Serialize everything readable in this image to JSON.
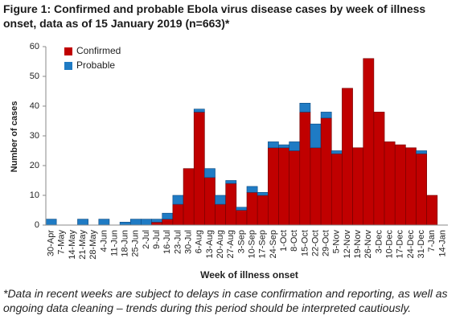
{
  "chart_data": {
    "type": "stacked_bar",
    "title": "Figure 1: Confirmed and probable Ebola virus disease cases by week of illness onset, data as of 15 January 2019 (n=663)*",
    "x_label": "Week of illness onset",
    "y_label": "Number of cases",
    "footnote": "*Data in recent weeks are subject to delays in case confirmation and reporting, as well as ongoing data cleaning – trends during this period should be interpreted cautiously.",
    "categories": [
      "30-Apr",
      "7-May",
      "14-May",
      "21-May",
      "28-May",
      "4-Jun",
      "11-Jun",
      "18-Jun",
      "25-Jun",
      "2-Jul",
      "9-Jul",
      "16-Jul",
      "23-Jul",
      "30-Jul",
      "6-Aug",
      "13-Aug",
      "20-Aug",
      "27-Aug",
      "3-Sep",
      "10-Sep",
      "17-Sep",
      "24-Sep",
      "1-Oct",
      "8-Oct",
      "15-Oct",
      "22-Oct",
      "29-Oct",
      "5-Nov",
      "12-Nov",
      "19-Nov",
      "26-Nov",
      "3-Dec",
      "10-Dec",
      "17-Dec",
      "24-Dec",
      "31-Dec",
      "7-Jan",
      "14-Jan"
    ],
    "series": [
      {
        "name": "Confirmed",
        "color": "#c00000",
        "values": [
          0,
          0,
          0,
          0,
          0,
          0,
          0,
          0,
          0,
          0,
          1,
          2,
          7,
          19,
          38,
          16,
          7,
          14,
          5,
          11,
          10,
          26,
          26,
          25,
          38,
          26,
          36,
          24,
          46,
          26,
          56,
          38,
          28,
          27,
          26,
          24,
          10,
          0
        ]
      },
      {
        "name": "Probable",
        "color": "#1f7bc4",
        "values": [
          2,
          0,
          0,
          2,
          0,
          2,
          0,
          1,
          2,
          2,
          1,
          2,
          3,
          0,
          1,
          3,
          3,
          1,
          1,
          2,
          1,
          2,
          1,
          3,
          3,
          8,
          2,
          1,
          0,
          0,
          0,
          0,
          0,
          0,
          0,
          1,
          0,
          0
        ]
      }
    ],
    "ylim": [
      0,
      60
    ],
    "yticks": [
      0,
      10,
      20,
      30,
      40,
      50,
      60
    ],
    "legend": "top-left",
    "grid": false
  }
}
